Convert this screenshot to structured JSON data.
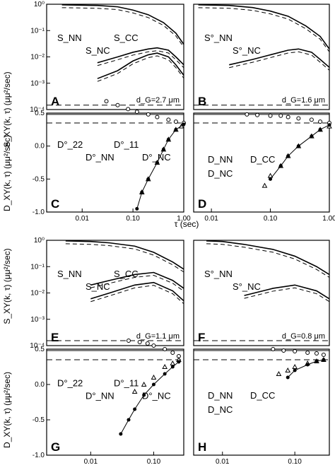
{
  "figure": {
    "ylabel_S": "S_XY(k, τ) (μμ²/sec)",
    "ylabel_D": "D_XY(k, τ) (μμ²/sec)",
    "xlabel": "τ (sec)"
  },
  "chart_data": [
    {
      "panel": "A",
      "type": "line",
      "note": "d_G=2.7 μm",
      "yscale": "log",
      "ylim": [
        0.0001,
        1
      ],
      "xlim": [
        0.002,
        1.0
      ],
      "xscale": "log",
      "yticks": [
        "10⁻⁴",
        "10⁻³",
        "10⁻²",
        "10⁻¹",
        "10⁰"
      ],
      "series": [
        {
          "name": "S_NN",
          "x": [
            0.004,
            0.02,
            0.05,
            0.1,
            0.2,
            0.4,
            0.7,
            1.0
          ],
          "y": [
            0.95,
            0.9,
            0.8,
            0.6,
            0.4,
            0.2,
            0.08,
            0.03
          ]
        },
        {
          "name": "S_NC",
          "x": [
            0.02,
            0.05,
            0.1,
            0.2,
            0.3,
            0.5,
            0.7,
            1.0
          ],
          "y": [
            0.006,
            0.01,
            0.015,
            0.02,
            0.022,
            0.018,
            0.01,
            0.005
          ]
        },
        {
          "name": "S_CC",
          "x": [
            0.02,
            0.05,
            0.1,
            0.2,
            0.3,
            0.5,
            0.7,
            1.0
          ],
          "y": [
            0.0015,
            0.003,
            0.007,
            0.012,
            0.014,
            0.01,
            0.005,
            0.002
          ]
        }
      ],
      "annotations": [
        "S_NN",
        "S_NC",
        "S_CC"
      ]
    },
    {
      "panel": "B",
      "type": "line",
      "note": "d_G=1.6 μm",
      "yscale": "log",
      "ylim": [
        0.0001,
        1
      ],
      "xlim": [
        0.005,
        1.0
      ],
      "xscale": "log",
      "series": [
        {
          "name": "S°_NN",
          "x": [
            0.006,
            0.02,
            0.05,
            0.1,
            0.2,
            0.4,
            0.7,
            1.0
          ],
          "y": [
            0.95,
            0.9,
            0.75,
            0.55,
            0.35,
            0.15,
            0.06,
            0.02
          ]
        },
        {
          "name": "S°_NC",
          "x": [
            0.02,
            0.05,
            0.1,
            0.2,
            0.3,
            0.5,
            0.7,
            1.0
          ],
          "y": [
            0.005,
            0.008,
            0.012,
            0.018,
            0.02,
            0.015,
            0.008,
            0.004
          ]
        }
      ],
      "annotations": [
        "S°_NN",
        "S°_NC"
      ]
    },
    {
      "panel": "C",
      "type": "scatter",
      "xscale": "log",
      "xlim": [
        0.002,
        1.0
      ],
      "ylim": [
        -1.0,
        0.5
      ],
      "yticks": [
        "-1.0",
        "-0.5",
        "0.0",
        "0.5"
      ],
      "xticks": [
        "0.01",
        "0.10",
        "1.00"
      ],
      "hlines": {
        "D°_22": 0.62,
        "D°_NN": 0.48,
        "D°_11": 0.35
      },
      "series": [
        {
          "name": "D_NN",
          "x": [
            0.03,
            0.05,
            0.08,
            0.12,
            0.2,
            0.3,
            0.5,
            0.7,
            1.0
          ],
          "y": [
            0.68,
            0.62,
            0.56,
            0.52,
            0.48,
            0.44,
            0.4,
            0.37,
            0.35
          ]
        },
        {
          "name": "D_CC",
          "x": [
            0.15,
            0.2,
            0.3,
            0.4,
            0.5,
            0.7,
            0.9
          ],
          "y": [
            -0.7,
            -0.5,
            -0.25,
            -0.05,
            0.1,
            0.25,
            0.3
          ]
        },
        {
          "name": "D_NC",
          "x": [
            0.12,
            0.15,
            0.2,
            0.3,
            0.4,
            0.5,
            0.7,
            1.0
          ],
          "y": [
            -0.95,
            -0.7,
            -0.5,
            -0.25,
            -0.05,
            0.1,
            0.25,
            0.33
          ]
        }
      ],
      "annotations": [
        "D°_22",
        "D°_NN",
        "D°_11",
        "D°_NC"
      ]
    },
    {
      "panel": "D",
      "type": "scatter",
      "xscale": "log",
      "xlim": [
        0.005,
        1.0
      ],
      "ylim": [
        -1.0,
        0.5
      ],
      "xticks": [
        "0.01",
        "0.10",
        "1.00"
      ],
      "hlines": {
        "D°_22": 0.62,
        "D°_NN": 0.48,
        "D°_11": 0.35
      },
      "legend": [
        "D_NN",
        "D_CC",
        "D_NC"
      ],
      "series": [
        {
          "name": "D_NN",
          "x": [
            0.04,
            0.06,
            0.1,
            0.15,
            0.2,
            0.3,
            0.5,
            0.7,
            1.0
          ],
          "y": [
            0.48,
            0.47,
            0.46,
            0.46,
            0.44,
            0.42,
            0.4,
            0.37,
            0.35
          ]
        },
        {
          "name": "D_CC",
          "x": [
            0.08,
            0.1,
            0.15,
            0.2,
            0.3,
            0.5,
            0.7,
            1.0
          ],
          "y": [
            -0.6,
            -0.45,
            -0.3,
            -0.15,
            0.0,
            0.15,
            0.25,
            0.3
          ]
        },
        {
          "name": "D_NC",
          "x": [
            0.1,
            0.15,
            0.2,
            0.3,
            0.5,
            0.7,
            1.0
          ],
          "y": [
            -0.5,
            -0.3,
            -0.15,
            0.0,
            0.15,
            0.25,
            0.32
          ]
        }
      ]
    },
    {
      "panel": "E",
      "type": "line",
      "note": "d_G=1.1 μm",
      "yscale": "log",
      "ylim": [
        0.0001,
        1
      ],
      "xlim": [
        0.002,
        0.3
      ],
      "xscale": "log",
      "yticks": [
        "10⁻⁴",
        "10⁻³",
        "10⁻²",
        "10⁻¹",
        "10⁰"
      ],
      "series": [
        {
          "name": "S_NN",
          "x": [
            0.004,
            0.01,
            0.02,
            0.05,
            0.1,
            0.2,
            0.3
          ],
          "y": [
            0.95,
            0.9,
            0.8,
            0.6,
            0.35,
            0.15,
            0.08
          ]
        },
        {
          "name": "S_NC",
          "x": [
            0.01,
            0.02,
            0.05,
            0.1,
            0.2,
            0.3
          ],
          "y": [
            0.02,
            0.03,
            0.05,
            0.06,
            0.03,
            0.015
          ]
        },
        {
          "name": "S_CC",
          "x": [
            0.01,
            0.02,
            0.05,
            0.1,
            0.2,
            0.3
          ],
          "y": [
            0.006,
            0.01,
            0.02,
            0.025,
            0.012,
            0.005
          ]
        }
      ],
      "annotations": [
        "S_NN",
        "S_NC",
        "S_CC"
      ]
    },
    {
      "panel": "F",
      "type": "line",
      "note": "d_G=0.8 μm",
      "yscale": "log",
      "ylim": [
        0.0001,
        1
      ],
      "xlim": [
        0.004,
        0.3
      ],
      "xscale": "log",
      "series": [
        {
          "name": "S°_NN",
          "x": [
            0.006,
            0.01,
            0.02,
            0.05,
            0.1,
            0.2,
            0.3
          ],
          "y": [
            0.95,
            0.9,
            0.7,
            0.45,
            0.25,
            0.1,
            0.05
          ]
        },
        {
          "name": "S°_NC",
          "x": [
            0.02,
            0.05,
            0.1,
            0.2,
            0.3
          ],
          "y": [
            0.008,
            0.015,
            0.02,
            0.012,
            0.006
          ]
        }
      ],
      "annotations": [
        "S°_NN",
        "S°_NC"
      ]
    },
    {
      "panel": "G",
      "type": "scatter",
      "xscale": "log",
      "xlim": [
        0.002,
        0.3
      ],
      "ylim": [
        -1.0,
        0.5
      ],
      "yticks": [
        "-1.0",
        "-0.5",
        "0.0",
        "0.5"
      ],
      "xticks": [
        "0.01",
        "0.10"
      ],
      "hlines": {
        "D°_22": 0.62,
        "D°_NN": 0.48,
        "D°_11": 0.35
      },
      "series": [
        {
          "name": "D_NN",
          "x": [
            0.04,
            0.06,
            0.08,
            0.1,
            0.15,
            0.2,
            0.25
          ],
          "y": [
            0.62,
            0.6,
            0.58,
            0.55,
            0.5,
            0.45,
            0.4
          ]
        },
        {
          "name": "D_CC",
          "x": [
            0.05,
            0.07,
            0.1,
            0.15,
            0.2,
            0.25
          ],
          "y": [
            -0.1,
            0.0,
            0.1,
            0.25,
            0.3,
            0.35
          ]
        },
        {
          "name": "D_NC",
          "x": [
            0.03,
            0.04,
            0.05,
            0.07,
            0.1,
            0.15,
            0.2,
            0.25
          ],
          "y": [
            -0.7,
            -0.5,
            -0.35,
            -0.15,
            0.0,
            0.15,
            0.25,
            0.32
          ]
        }
      ],
      "annotations": [
        "D°_22",
        "D°_NN",
        "D°_11",
        "D°_NC"
      ]
    },
    {
      "panel": "H",
      "type": "scatter",
      "xscale": "log",
      "xlim": [
        0.004,
        0.3
      ],
      "ylim": [
        -1.0,
        0.5
      ],
      "xticks": [
        "0.01",
        "0.10"
      ],
      "hlines": {
        "D°_22": 0.62,
        "D°_NN": 0.48,
        "D°_11": 0.35
      },
      "legend": [
        "D_NN",
        "D_CC",
        "D_NC"
      ],
      "series": [
        {
          "name": "D_NN",
          "x": [
            0.05,
            0.07,
            0.1,
            0.15,
            0.2,
            0.25
          ],
          "y": [
            0.5,
            0.48,
            0.47,
            0.45,
            0.44,
            0.42
          ]
        },
        {
          "name": "D_CC",
          "x": [
            0.06,
            0.08,
            0.1,
            0.15,
            0.2,
            0.25
          ],
          "y": [
            0.15,
            0.2,
            0.25,
            0.3,
            0.33,
            0.35
          ]
        },
        {
          "name": "D_NC",
          "x": [
            0.08,
            0.1,
            0.15,
            0.2,
            0.25
          ],
          "y": [
            0.1,
            0.2,
            0.28,
            0.33,
            0.35
          ]
        }
      ]
    }
  ]
}
